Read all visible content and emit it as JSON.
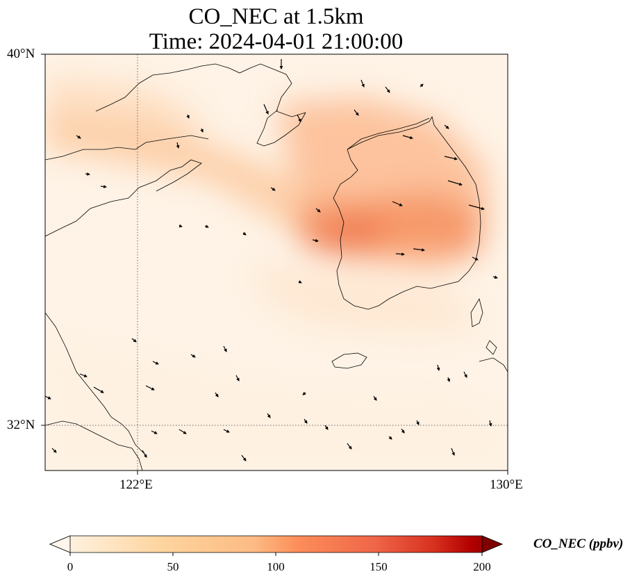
{
  "figure": {
    "title_line1": "CO_NEC at 1.5km",
    "title_line2": "Time: 2024-04-01 21:00:00"
  },
  "map": {
    "region": "Yellow Sea / Korean Peninsula",
    "lon_range": [
      119,
      130
    ],
    "lat_range": [
      30.6,
      40
    ],
    "lat_ticks": [
      {
        "value": 40,
        "label": "40°N"
      },
      {
        "value": 32,
        "label": "32°N"
      }
    ],
    "lon_ticks": [
      {
        "value": 122,
        "label": "122°E"
      },
      {
        "value": 130,
        "label": "130°E"
      }
    ],
    "gridlines": "dotted at 122°E and 32°N",
    "field_description": "CO concentration shading with wind vectors",
    "colors": {
      "low": "#fff5eb",
      "mid": "#fdae6b",
      "high": "#e6550d",
      "max": "#7f0000",
      "coast": "#000000"
    }
  },
  "colorbar": {
    "label": "CO_NEC (ppbv)",
    "min": 0,
    "max": 200,
    "ticks": [
      "0",
      "50",
      "100",
      "150",
      "200"
    ],
    "extend": "both",
    "colormap": "OrRd"
  }
}
